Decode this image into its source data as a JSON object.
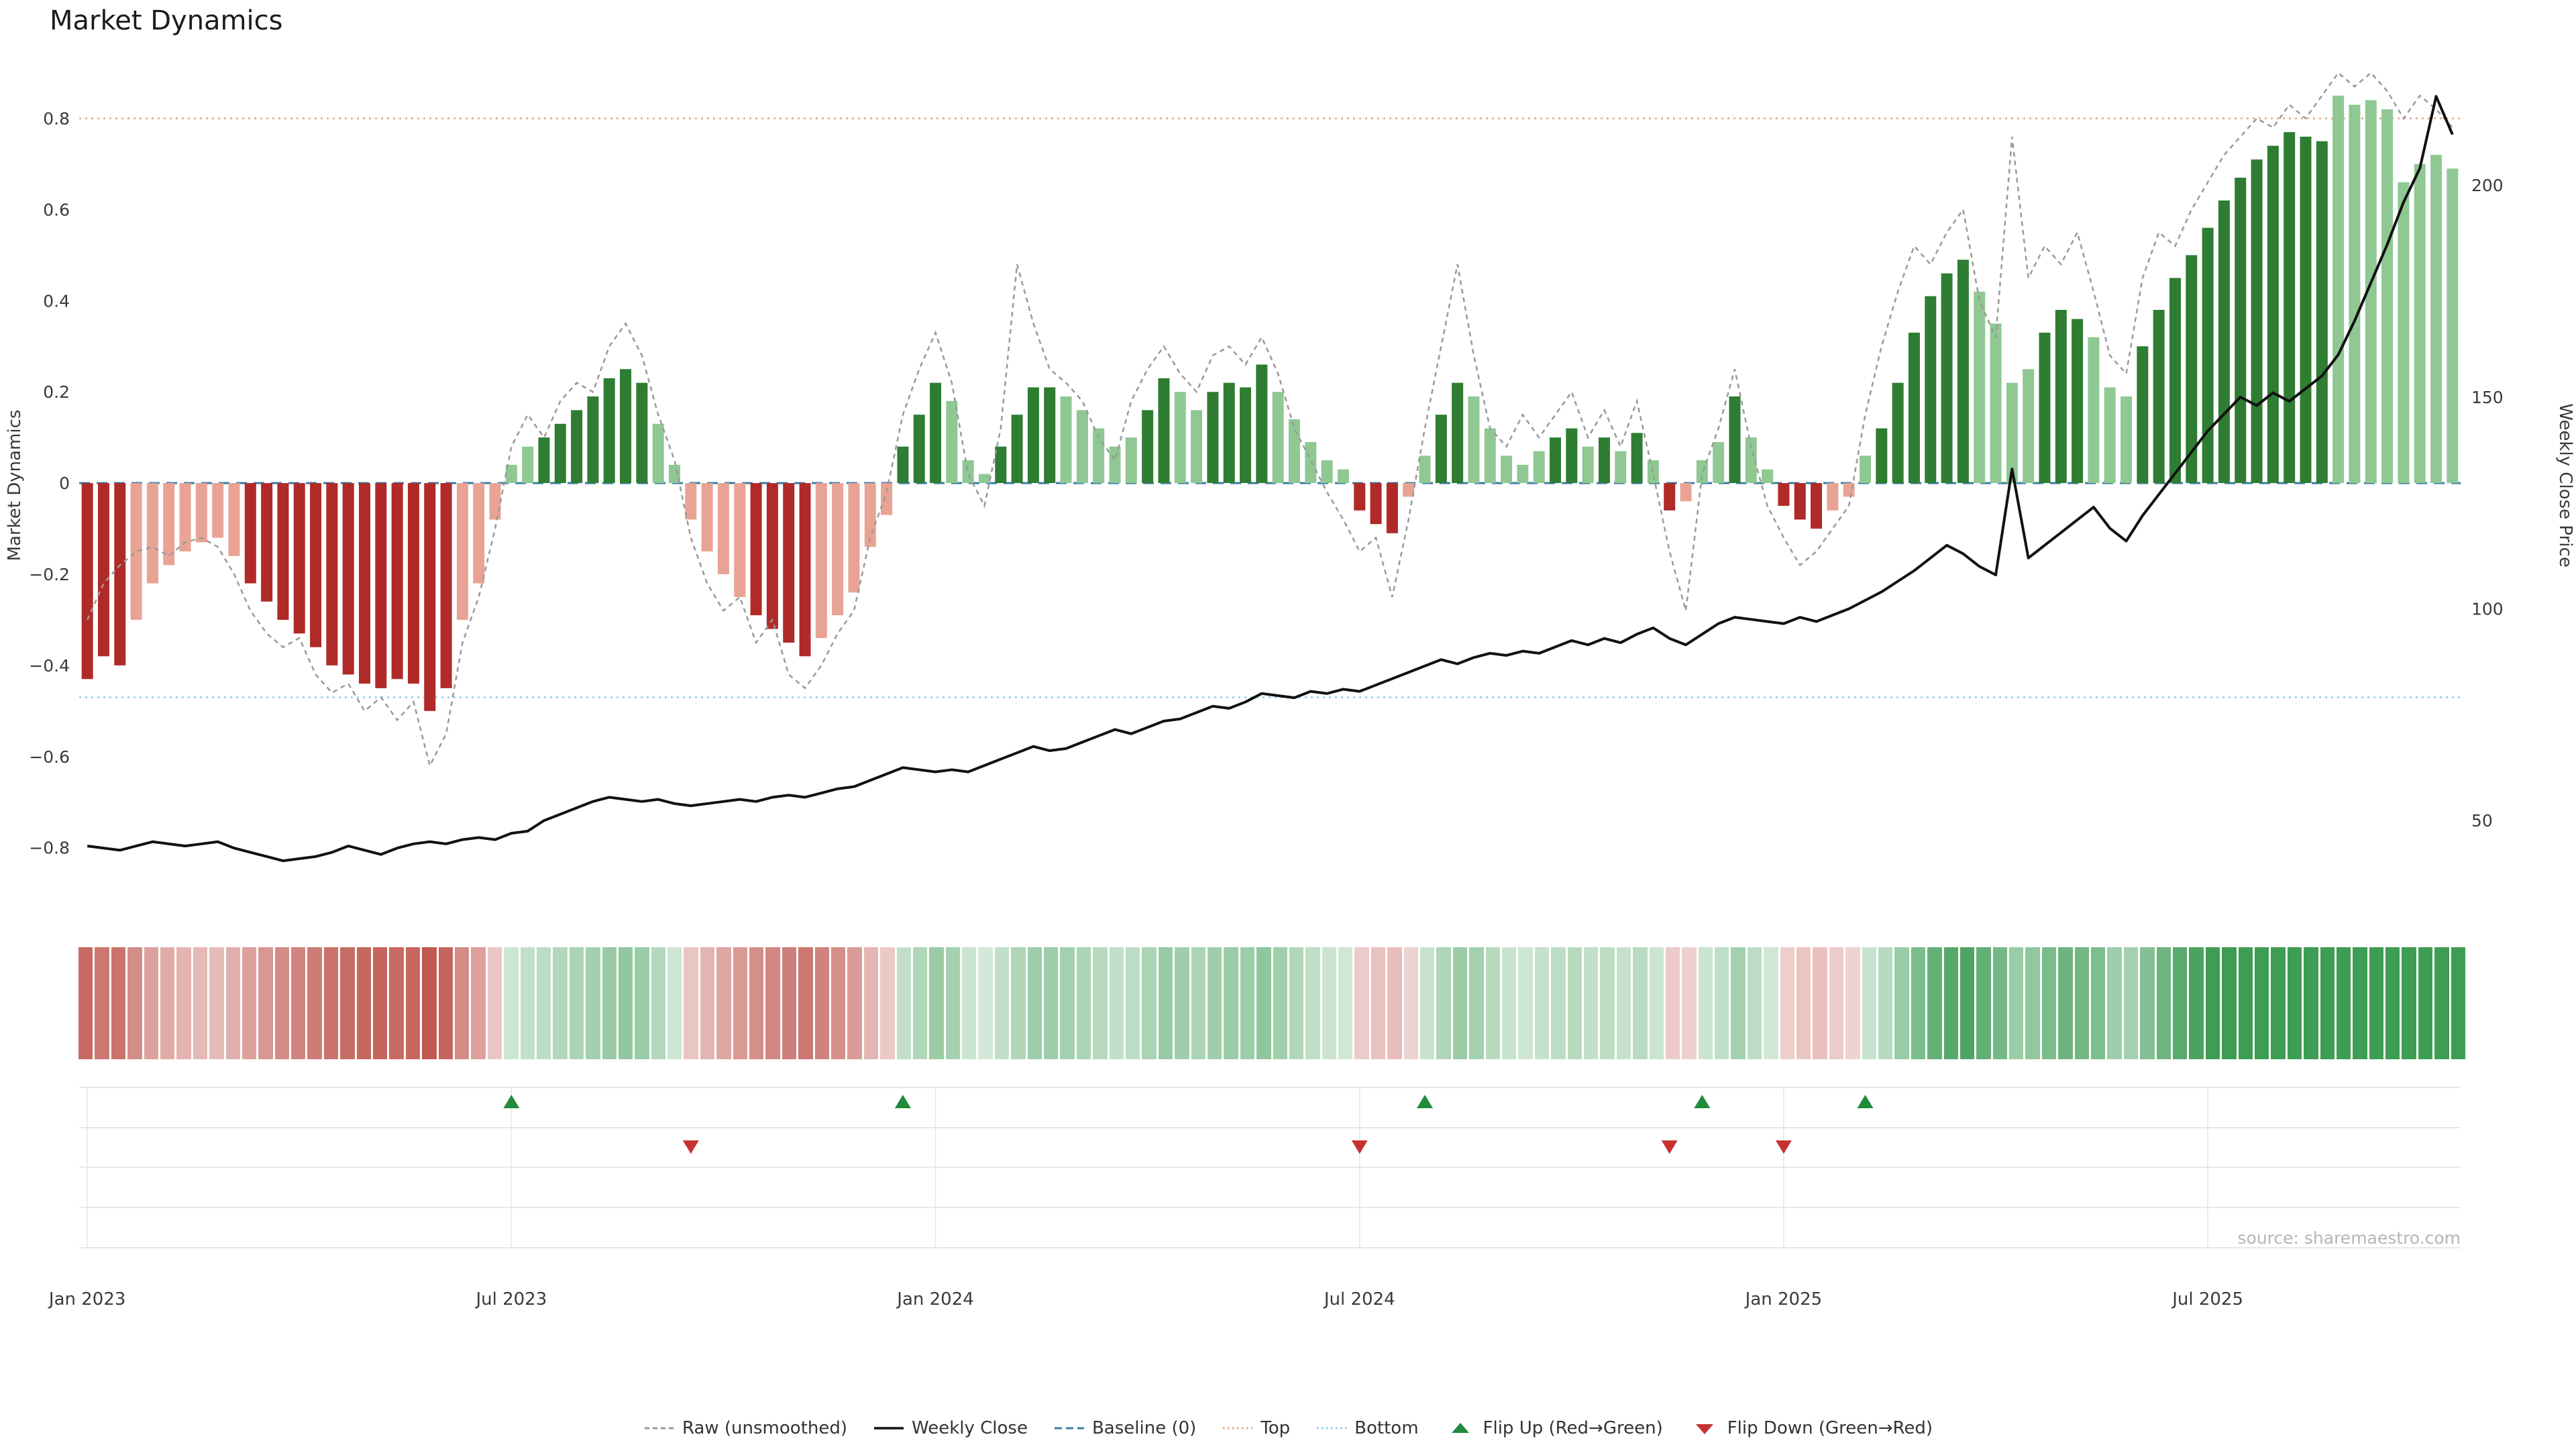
{
  "title": "Market Dynamics",
  "source": "source: sharemaestro.com",
  "axes": {
    "left_label": "Market Dynamics",
    "right_label": "Weekly Close Price",
    "left_ticks": [
      0.8,
      0.6,
      0.4,
      0.2,
      0,
      -0.2,
      -0.4,
      -0.6,
      -0.8
    ],
    "right_ticks": [
      50,
      100,
      150,
      200
    ],
    "left_domain": [
      -0.93,
      0.92
    ],
    "right_domain": [
      29.6,
      228.7
    ]
  },
  "colors": {
    "bar_strong_pos": "#2e7d32",
    "bar_weak_pos": "#8fc892",
    "bar_strong_neg": "#b02a28",
    "bar_weak_neg": "#e8a394",
    "raw_line": "#999999",
    "close_line": "#111111",
    "baseline": "#3a7ca5",
    "top_line": "#e2a582",
    "bottom_line": "#85cde8",
    "flip_up": "#1f8b3b",
    "flip_down": "#c63232",
    "grid": "#e0e0e0"
  },
  "legend": [
    {
      "label": "Raw (unsmoothed)",
      "swatch": "dash-gray"
    },
    {
      "label": "Weekly Close",
      "swatch": "solid-black"
    },
    {
      "label": "Baseline (0)",
      "swatch": "dash-blue"
    },
    {
      "label": "Top",
      "swatch": "dot-orange"
    },
    {
      "label": "Bottom",
      "swatch": "dot-cyan"
    },
    {
      "label": "Flip Up (Red→Green)",
      "swatch": "triangle-up"
    },
    {
      "label": "Flip Down (Green→Red)",
      "swatch": "triangle-down"
    }
  ],
  "chart_data": {
    "type": "combo-bar-line",
    "x_unit": "week",
    "n_weeks": 146,
    "x_ticks": [
      {
        "week": 0,
        "label": "Jan 2023"
      },
      {
        "week": 26,
        "label": "Jul 2023"
      },
      {
        "week": 52,
        "label": "Jan 2024"
      },
      {
        "week": 78,
        "label": "Jul 2024"
      },
      {
        "week": 104,
        "label": "Jan 2025"
      },
      {
        "week": 130,
        "label": "Jul 2025"
      }
    ],
    "baseline": 0,
    "top_threshold": 0.8,
    "bottom_threshold": -0.47,
    "dynamics": [
      -0.43,
      -0.38,
      -0.4,
      -0.3,
      -0.22,
      -0.18,
      -0.15,
      -0.13,
      -0.12,
      -0.16,
      -0.22,
      -0.26,
      -0.3,
      -0.33,
      -0.36,
      -0.4,
      -0.42,
      -0.44,
      -0.45,
      -0.43,
      -0.44,
      -0.5,
      -0.45,
      -0.3,
      -0.22,
      -0.08,
      0.04,
      0.08,
      0.1,
      0.13,
      0.16,
      0.19,
      0.23,
      0.25,
      0.22,
      0.13,
      0.04,
      -0.08,
      -0.15,
      -0.2,
      -0.25,
      -0.29,
      -0.32,
      -0.35,
      -0.38,
      -0.34,
      -0.29,
      -0.24,
      -0.14,
      -0.07,
      0.08,
      0.15,
      0.22,
      0.18,
      0.05,
      0.02,
      0.08,
      0.15,
      0.21,
      0.21,
      0.19,
      0.16,
      0.12,
      0.08,
      0.1,
      0.16,
      0.23,
      0.2,
      0.16,
      0.2,
      0.22,
      0.21,
      0.26,
      0.2,
      0.14,
      0.09,
      0.05,
      0.03,
      -0.06,
      -0.09,
      -0.11,
      -0.03,
      0.06,
      0.15,
      0.22,
      0.19,
      0.12,
      0.06,
      0.04,
      0.07,
      0.1,
      0.12,
      0.08,
      0.1,
      0.07,
      0.11,
      0.05,
      -0.06,
      -0.04,
      0.05,
      0.09,
      0.19,
      0.1,
      0.03,
      -0.05,
      -0.08,
      -0.1,
      -0.06,
      -0.03,
      0.06,
      0.12,
      0.22,
      0.33,
      0.41,
      0.46,
      0.49,
      0.42,
      0.35,
      0.22,
      0.25,
      0.33,
      0.38,
      0.36,
      0.32,
      0.21,
      0.19,
      0.3,
      0.38,
      0.45,
      0.5,
      0.56,
      0.62,
      0.67,
      0.71,
      0.74,
      0.77,
      0.76,
      0.75,
      0.85,
      0.83,
      0.84,
      0.82,
      0.66,
      0.7,
      0.72,
      0.69
    ],
    "shade": [
      1,
      1,
      1,
      0,
      0,
      0,
      0,
      0,
      0,
      0,
      1,
      1,
      1,
      1,
      1,
      1,
      1,
      1,
      1,
      1,
      1,
      1,
      1,
      0,
      0,
      0,
      0,
      0,
      1,
      1,
      1,
      1,
      1,
      1,
      1,
      0,
      0,
      0,
      0,
      0,
      0,
      1,
      1,
      1,
      1,
      0,
      0,
      0,
      0,
      0,
      1,
      1,
      1,
      0,
      0,
      0,
      1,
      1,
      1,
      1,
      0,
      0,
      0,
      0,
      0,
      1,
      1,
      0,
      0,
      1,
      1,
      1,
      1,
      0,
      0,
      0,
      0,
      0,
      1,
      1,
      1,
      0,
      0,
      1,
      1,
      0,
      0,
      0,
      0,
      0,
      1,
      1,
      0,
      1,
      0,
      1,
      0,
      1,
      0,
      0,
      0,
      1,
      0,
      0,
      1,
      1,
      1,
      0,
      0,
      0,
      1,
      1,
      1,
      1,
      1,
      1,
      0,
      0,
      0,
      0,
      1,
      1,
      1,
      0,
      0,
      0,
      1,
      1,
      1,
      1,
      1,
      1,
      1,
      1,
      1,
      1,
      1,
      1,
      0,
      0,
      0,
      0,
      0,
      0,
      0,
      0
    ],
    "raw": [
      -0.3,
      -0.22,
      -0.18,
      -0.15,
      -0.14,
      -0.16,
      -0.13,
      -0.12,
      -0.14,
      -0.2,
      -0.28,
      -0.33,
      -0.36,
      -0.34,
      -0.42,
      -0.46,
      -0.44,
      -0.5,
      -0.47,
      -0.52,
      -0.48,
      -0.62,
      -0.55,
      -0.35,
      -0.25,
      -0.1,
      0.08,
      0.15,
      0.1,
      0.18,
      0.22,
      0.2,
      0.3,
      0.35,
      0.28,
      0.15,
      0.05,
      -0.12,
      -0.22,
      -0.28,
      -0.25,
      -0.35,
      -0.3,
      -0.42,
      -0.45,
      -0.4,
      -0.33,
      -0.28,
      -0.12,
      -0.02,
      0.15,
      0.25,
      0.33,
      0.22,
      0.02,
      -0.05,
      0.12,
      0.48,
      0.35,
      0.25,
      0.22,
      0.18,
      0.1,
      0.05,
      0.18,
      0.25,
      0.3,
      0.24,
      0.2,
      0.28,
      0.3,
      0.26,
      0.32,
      0.24,
      0.12,
      0.05,
      -0.02,
      -0.08,
      -0.15,
      -0.12,
      -0.25,
      -0.08,
      0.12,
      0.3,
      0.48,
      0.28,
      0.12,
      0.08,
      0.15,
      0.1,
      0.15,
      0.2,
      0.1,
      0.16,
      0.08,
      0.18,
      0.02,
      -0.15,
      -0.28,
      0.02,
      0.12,
      0.25,
      0.08,
      -0.05,
      -0.12,
      -0.18,
      -0.15,
      -0.1,
      -0.05,
      0.15,
      0.3,
      0.42,
      0.52,
      0.48,
      0.55,
      0.6,
      0.4,
      0.32,
      0.76,
      0.45,
      0.52,
      0.48,
      0.55,
      0.42,
      0.28,
      0.24,
      0.45,
      0.55,
      0.52,
      0.6,
      0.66,
      0.72,
      0.76,
      0.8,
      0.78,
      0.83,
      0.8,
      0.85,
      0.9,
      0.87,
      0.9,
      0.86,
      0.8,
      0.85,
      0.82,
      0.78
    ],
    "weekly_close": [
      44,
      43.5,
      43,
      44,
      45,
      44.5,
      44,
      44.5,
      45,
      43.5,
      42.5,
      41.5,
      40.5,
      41,
      41.5,
      42.5,
      44,
      43,
      42,
      43.5,
      44.5,
      45,
      44.5,
      45.5,
      46,
      45.5,
      47,
      47.5,
      50,
      51.5,
      53,
      54.5,
      55.5,
      55,
      54.5,
      55,
      54,
      53.5,
      54,
      54.5,
      55,
      54.5,
      55.5,
      56,
      55.5,
      56.5,
      57.5,
      58,
      59.5,
      61,
      62.5,
      62,
      61.5,
      62,
      61.5,
      63,
      64.5,
      66,
      67.5,
      66.5,
      67,
      68.5,
      70,
      71.5,
      70.5,
      72,
      73.5,
      74,
      75.5,
      77,
      76.5,
      78,
      80,
      79.5,
      79,
      80.5,
      80,
      81,
      80.5,
      82,
      83.5,
      85,
      86.5,
      88,
      87,
      88.5,
      89.5,
      89,
      90,
      89.5,
      91,
      92.5,
      91.5,
      93,
      92,
      94,
      95.5,
      93,
      91.5,
      94,
      96.5,
      98,
      97.5,
      97,
      96.5,
      98,
      97,
      98.5,
      100,
      102,
      104,
      106.5,
      109,
      112,
      115,
      113,
      110,
      108,
      133,
      112,
      115,
      118,
      121,
      124,
      119,
      116,
      122,
      127,
      132,
      137,
      142,
      146,
      150,
      148,
      151,
      149,
      152,
      155,
      160,
      168,
      177,
      186,
      196,
      204,
      221,
      212
    ],
    "flip_up_weeks": [
      26,
      50,
      82,
      99,
      109
    ],
    "flip_down_weeks": [
      37,
      78,
      97,
      104
    ]
  }
}
